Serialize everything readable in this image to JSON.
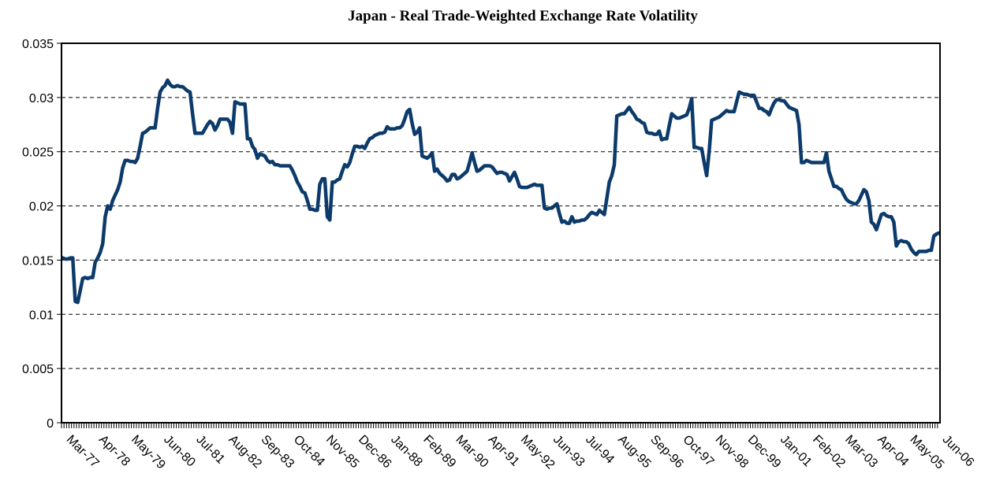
{
  "chart_data": {
    "type": "line",
    "title": "Japan - Real Trade-Weighted Exchange Rate Volatility",
    "color": "#0b3a6b",
    "grid": true,
    "ylim": [
      0,
      0.035
    ],
    "yticks": [
      0,
      0.005,
      0.01,
      0.015,
      0.02,
      0.025,
      0.03,
      0.035
    ],
    "categories": [
      "Mar-77",
      null,
      null,
      null,
      null,
      null,
      null,
      null,
      null,
      null,
      null,
      null,
      null,
      "Apr-78",
      null,
      null,
      null,
      null,
      null,
      null,
      null,
      null,
      null,
      null,
      null,
      null,
      "May-79",
      null,
      null,
      null,
      null,
      null,
      null,
      null,
      null,
      null,
      null,
      null,
      null,
      "Jun-80",
      null,
      null,
      null,
      null,
      null,
      null,
      null,
      null,
      null,
      null,
      null,
      null,
      "Jul-81",
      null,
      null,
      null,
      null,
      null,
      null,
      null,
      null,
      null,
      null,
      null,
      null,
      "Aug-82",
      null,
      null,
      null,
      null,
      null,
      null,
      null,
      null,
      null,
      null,
      null,
      null,
      "Sep-83",
      null,
      null,
      null,
      null,
      null,
      null,
      null,
      null,
      null,
      null,
      null,
      null,
      "Oct-84",
      null,
      null,
      null,
      null,
      null,
      null,
      null,
      null,
      null,
      null,
      null,
      null,
      "Nov-85",
      null,
      null,
      null,
      null,
      null,
      null,
      null,
      null,
      null,
      null,
      null,
      null,
      "Dec-86",
      null,
      null,
      null,
      null,
      null,
      null,
      null,
      null,
      null,
      null,
      null,
      null,
      "Jan-88",
      null,
      null,
      null,
      null,
      null,
      null,
      null,
      null,
      null,
      null,
      null,
      null,
      "Feb-89",
      null,
      null,
      null,
      null,
      null,
      null,
      null,
      null,
      null,
      null,
      null,
      null,
      "Mar-90",
      null,
      null,
      null,
      null,
      null,
      null,
      null,
      null,
      null,
      null,
      null,
      null,
      "Apr-91",
      null,
      null,
      null,
      null,
      null,
      null,
      null,
      null,
      null,
      null,
      null,
      null,
      "May-92",
      null,
      null,
      null,
      null,
      null,
      null,
      null,
      null,
      null,
      null,
      null,
      null,
      "Jun-93",
      null,
      null,
      null,
      null,
      null,
      null,
      null,
      null,
      null,
      null,
      null,
      null,
      "Jul-94",
      null,
      null,
      null,
      null,
      null,
      null,
      null,
      null,
      null,
      null,
      null,
      null,
      "Aug-95",
      null,
      null,
      null,
      null,
      null,
      null,
      null,
      null,
      null,
      null,
      null,
      null,
      "Sep-96",
      null,
      null,
      null,
      null,
      null,
      null,
      null,
      null,
      null,
      null,
      null,
      null,
      "Oct-97",
      null,
      null,
      null,
      null,
      null,
      null,
      null,
      null,
      null,
      null,
      null,
      null,
      "Nov-98",
      null,
      null,
      null,
      null,
      null,
      null,
      null,
      null,
      null,
      null,
      null,
      null,
      "Dec-99",
      null,
      null,
      null,
      null,
      null,
      null,
      null,
      null,
      null,
      null,
      null,
      null,
      "Jan-01",
      null,
      null,
      null,
      null,
      null,
      null,
      null,
      null,
      null,
      null,
      null,
      null,
      "Feb-02",
      null,
      null,
      null,
      null,
      null,
      null,
      null,
      null,
      null,
      null,
      null,
      null,
      "Mar-03",
      null,
      null,
      null,
      null,
      null,
      null,
      null,
      null,
      null,
      null,
      null,
      null,
      "Apr-04",
      null,
      null,
      null,
      null,
      null,
      null,
      null,
      null,
      null,
      null,
      null,
      null,
      "May-05",
      null,
      null,
      null,
      null,
      null,
      null,
      null,
      null,
      null,
      null,
      null,
      null,
      "Jun-06"
    ],
    "values": [
      0.0152,
      0.0151,
      0.0151,
      0.0152,
      0.0152,
      0.0112,
      0.0111,
      0.0122,
      0.0133,
      0.0134,
      0.0133,
      0.0134,
      0.0134,
      0.0148,
      0.0152,
      0.0157,
      0.0165,
      0.019,
      0.02,
      0.0197,
      0.0205,
      0.021,
      0.0215,
      0.0222,
      0.0235,
      0.0242,
      0.0242,
      0.0241,
      0.0241,
      0.024,
      0.0244,
      0.0255,
      0.0267,
      0.0268,
      0.027,
      0.0272,
      0.0272,
      0.0272,
      0.029,
      0.0305,
      0.0309,
      0.0311,
      0.0316,
      0.0312,
      0.031,
      0.031,
      0.0311,
      0.031,
      0.031,
      0.0308,
      0.0306,
      0.0305,
      0.0285,
      0.0267,
      0.0267,
      0.0267,
      0.0267,
      0.0271,
      0.0275,
      0.0278,
      0.0276,
      0.027,
      0.0274,
      0.028,
      0.028,
      0.028,
      0.028,
      0.0277,
      0.0267,
      0.0296,
      0.0295,
      0.0294,
      0.0294,
      0.0294,
      0.0262,
      0.0262,
      0.0255,
      0.0252,
      0.0244,
      0.0248,
      0.0247,
      0.0246,
      0.0242,
      0.024,
      0.0241,
      0.0238,
      0.0238,
      0.0237,
      0.0237,
      0.0237,
      0.0237,
      0.0237,
      0.0233,
      0.0228,
      0.0222,
      0.0218,
      0.0213,
      0.0212,
      0.0205,
      0.0197,
      0.0197,
      0.0196,
      0.0196,
      0.022,
      0.0225,
      0.0225,
      0.019,
      0.0187,
      0.0222,
      0.0222,
      0.0224,
      0.0225,
      0.0232,
      0.0238,
      0.0236,
      0.024,
      0.0248,
      0.0255,
      0.0255,
      0.0254,
      0.0255,
      0.0253,
      0.0258,
      0.0262,
      0.0263,
      0.0265,
      0.0266,
      0.0267,
      0.0267,
      0.0268,
      0.0273,
      0.0271,
      0.0271,
      0.0271,
      0.0272,
      0.0272,
      0.0274,
      0.028,
      0.0287,
      0.0289,
      0.0276,
      0.0266,
      0.0268,
      0.0272,
      0.0246,
      0.0245,
      0.0244,
      0.0246,
      0.0249,
      0.0232,
      0.0234,
      0.023,
      0.0228,
      0.0226,
      0.0223,
      0.0224,
      0.0229,
      0.0229,
      0.0225,
      0.0226,
      0.0228,
      0.023,
      0.0232,
      0.024,
      0.0249,
      0.024,
      0.0232,
      0.0233,
      0.0235,
      0.0237,
      0.0237,
      0.0237,
      0.0236,
      0.0233,
      0.023,
      0.0231,
      0.0231,
      0.023,
      0.0229,
      0.0223,
      0.0227,
      0.0231,
      0.0225,
      0.0218,
      0.0217,
      0.0217,
      0.0217,
      0.0218,
      0.0219,
      0.022,
      0.0219,
      0.0219,
      0.0219,
      0.0198,
      0.0197,
      0.0198,
      0.0198,
      0.02,
      0.0202,
      0.0193,
      0.0185,
      0.0186,
      0.0184,
      0.0184,
      0.019,
      0.0185,
      0.0186,
      0.0186,
      0.0187,
      0.0187,
      0.0189,
      0.0192,
      0.0194,
      0.0193,
      0.0192,
      0.0196,
      0.0194,
      0.0192,
      0.0207,
      0.0222,
      0.0228,
      0.0238,
      0.0283,
      0.0284,
      0.0285,
      0.0285,
      0.0288,
      0.0291,
      0.0287,
      0.0284,
      0.028,
      0.0279,
      0.0277,
      0.0276,
      0.0268,
      0.0267,
      0.0267,
      0.0266,
      0.0266,
      0.0269,
      0.0261,
      0.0262,
      0.0262,
      0.0274,
      0.0285,
      0.0283,
      0.0281,
      0.0281,
      0.0282,
      0.0283,
      0.0284,
      0.029,
      0.0299,
      0.0254,
      0.0254,
      0.0253,
      0.0253,
      0.024,
      0.0228,
      0.025,
      0.0279,
      0.028,
      0.0281,
      0.0282,
      0.0284,
      0.0286,
      0.0288,
      0.0287,
      0.0287,
      0.0287,
      0.0296,
      0.0305,
      0.0304,
      0.0303,
      0.0303,
      0.0302,
      0.0302,
      0.0302,
      0.0296,
      0.029,
      0.029,
      0.0288,
      0.0287,
      0.0284,
      0.029,
      0.0295,
      0.0298,
      0.0298,
      0.0297,
      0.0297,
      0.0294,
      0.0291,
      0.029,
      0.0289,
      0.0288,
      0.0275,
      0.024,
      0.024,
      0.0242,
      0.0241,
      0.024,
      0.024,
      0.024,
      0.024,
      0.024,
      0.024,
      0.0249,
      0.0232,
      0.0225,
      0.0218,
      0.0218,
      0.0216,
      0.0215,
      0.021,
      0.0206,
      0.0204,
      0.0203,
      0.0202,
      0.0202,
      0.0205,
      0.021,
      0.0215,
      0.0213,
      0.0205,
      0.0185,
      0.0183,
      0.0178,
      0.0185,
      0.0192,
      0.0193,
      0.0191,
      0.019,
      0.019,
      0.0185,
      0.0163,
      0.0167,
      0.0168,
      0.0167,
      0.0167,
      0.0165,
      0.016,
      0.0157,
      0.0155,
      0.0158,
      0.0158,
      0.0158,
      0.0158,
      0.0159,
      0.0159,
      0.0172,
      0.0174,
      0.0175
    ]
  }
}
